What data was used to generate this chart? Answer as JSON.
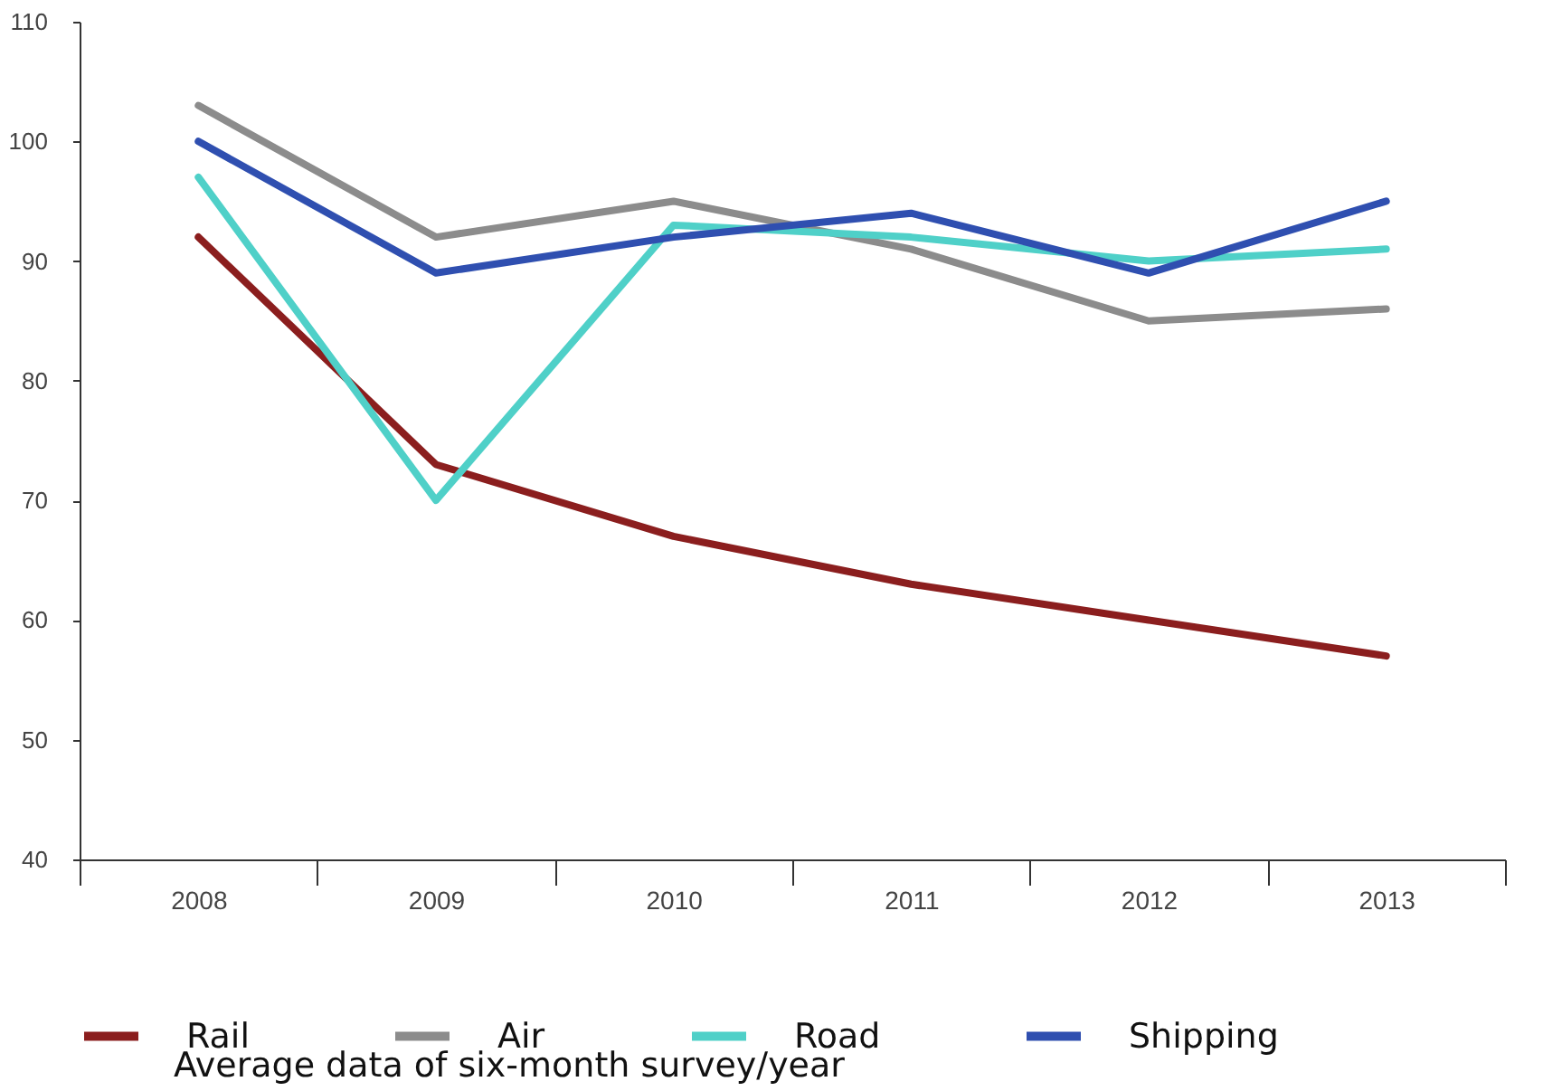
{
  "chart_data": {
    "type": "line",
    "categories": [
      "2008",
      "2009",
      "2010",
      "2011",
      "2012",
      "2013"
    ],
    "series": [
      {
        "name": "Rail",
        "color": "#8b1e1e",
        "values": [
          92,
          73,
          67,
          63,
          60,
          57
        ]
      },
      {
        "name": "Air",
        "color": "#8c8c8c",
        "values": [
          103,
          92,
          95,
          91,
          85,
          86
        ]
      },
      {
        "name": "Road",
        "color": "#4fd0c8",
        "values": [
          97,
          70,
          93,
          92,
          90,
          91
        ]
      },
      {
        "name": "Shipping",
        "color": "#2f4fb0",
        "values": [
          100,
          89,
          92,
          94,
          89,
          95
        ]
      }
    ],
    "ylim": [
      40,
      110
    ],
    "yticks": [
      40,
      50,
      60,
      70,
      80,
      90,
      100,
      110
    ],
    "grid": false,
    "legend": "bottom",
    "marker": "none",
    "line_style": "solid",
    "annotations": [
      "Average data of six-month survey/year"
    ]
  }
}
